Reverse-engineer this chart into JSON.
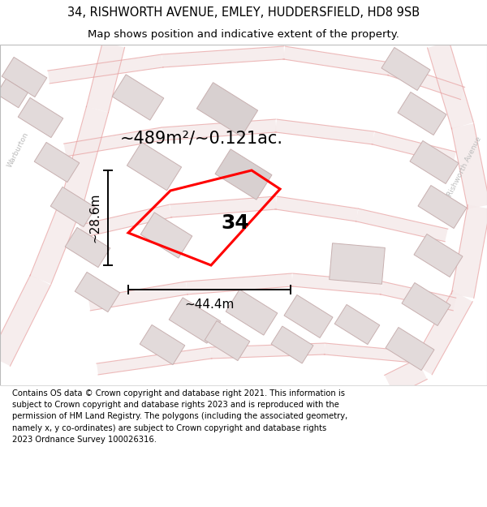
{
  "title_line1": "34, RISHWORTH AVENUE, EMLEY, HUDDERSFIELD, HD8 9SB",
  "title_line2": "Map shows position and indicative extent of the property.",
  "area_label": "~489m²/~0.121ac.",
  "number_label": "34",
  "width_label": "~44.4m",
  "height_label": "~28.6m",
  "footer_text": "Contains OS data © Crown copyright and database right 2021. This information is subject to Crown copyright and database rights 2023 and is reproduced with the permission of HM Land Registry. The polygons (including the associated geometry, namely x, y co-ordinates) are subject to Crown copyright and database rights 2023 Ordnance Survey 100026316.",
  "map_bg": "#f7f2f2",
  "road_fill": "#f5eaea",
  "road_edge": "#e8a0a0",
  "building_fill": "#e2dada",
  "building_edge": "#c8b0b0",
  "highlight_color": "#ff0000",
  "dim_color": "#000000",
  "street_color": "#bbbbbb",
  "title_fontsize": 10.5,
  "subtitle_fontsize": 9.5,
  "footer_fontsize": 7.2,
  "number_fontsize": 18,
  "area_fontsize": 15,
  "dim_fontsize": 11
}
